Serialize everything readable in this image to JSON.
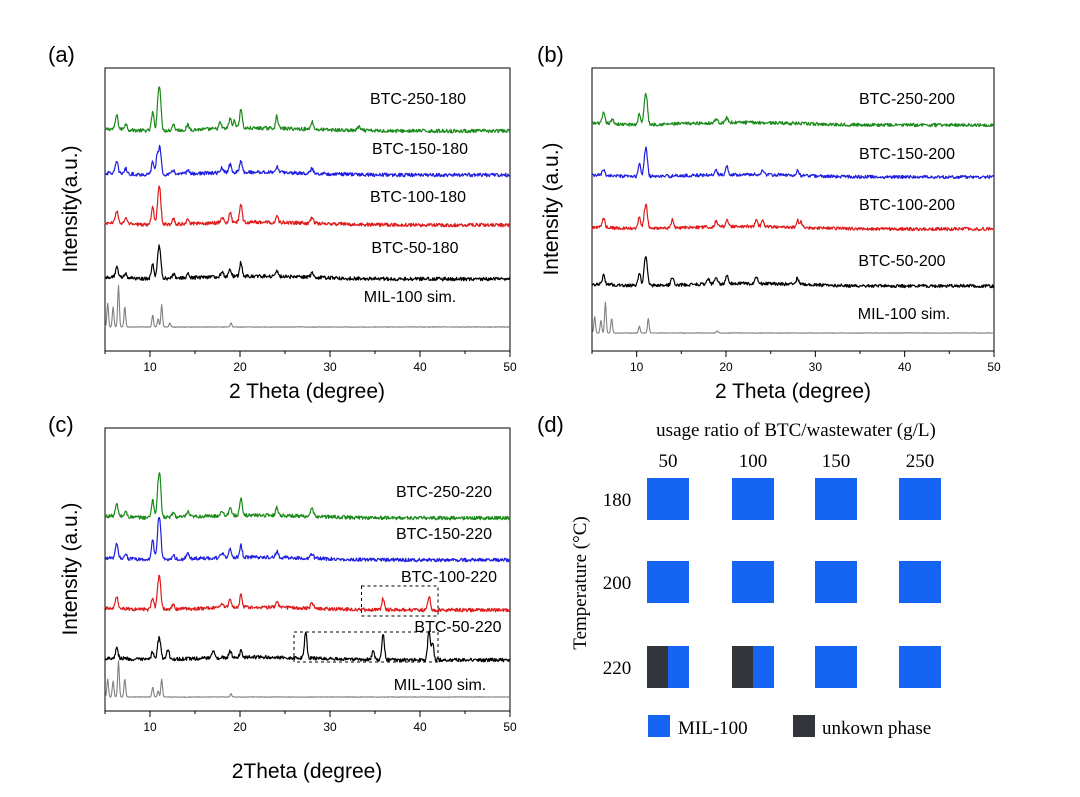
{
  "chart_data": [
    {
      "panel": "(a)",
      "type": "line",
      "title": "",
      "xlabel": "2 Theta (degree)",
      "ylabel": "Intensity(a.u.)",
      "xlim": [
        5,
        50
      ],
      "xticks": [
        10,
        20,
        30,
        40,
        50
      ],
      "series": [
        {
          "name": "BTC-250-180",
          "color": "#1a8a1a",
          "offset": 4.0,
          "peaks": [
            [
              6.3,
              0.35
            ],
            [
              7.3,
              0.15
            ],
            [
              10.3,
              0.45
            ],
            [
              10.9,
              0.6
            ],
            [
              11.1,
              0.85
            ],
            [
              12.6,
              0.15
            ],
            [
              14.2,
              0.12
            ],
            [
              17.8,
              0.15
            ],
            [
              18.9,
              0.25
            ],
            [
              19.4,
              0.2
            ],
            [
              20.1,
              0.5
            ],
            [
              24.1,
              0.3
            ],
            [
              28.0,
              0.2
            ],
            [
              33.2,
              0.1
            ]
          ]
        },
        {
          "name": "BTC-150-180",
          "color": "#1f1fe0",
          "offset": 3.0,
          "peaks": [
            [
              6.3,
              0.28
            ],
            [
              7.3,
              0.12
            ],
            [
              10.3,
              0.32
            ],
            [
              10.8,
              0.45
            ],
            [
              11.1,
              0.65
            ],
            [
              12.6,
              0.1
            ],
            [
              14.2,
              0.1
            ],
            [
              18.0,
              0.12
            ],
            [
              18.9,
              0.2
            ],
            [
              20.1,
              0.3
            ],
            [
              24.1,
              0.15
            ],
            [
              28.0,
              0.12
            ]
          ]
        },
        {
          "name": "BTC-100-180",
          "color": "#e01a1a",
          "offset": 2.0,
          "peaks": [
            [
              6.3,
              0.32
            ],
            [
              7.3,
              0.12
            ],
            [
              10.3,
              0.45
            ],
            [
              10.9,
              0.5
            ],
            [
              11.1,
              0.7
            ],
            [
              12.6,
              0.14
            ],
            [
              14.2,
              0.14
            ],
            [
              18.0,
              0.16
            ],
            [
              18.9,
              0.25
            ],
            [
              20.1,
              0.45
            ],
            [
              24.1,
              0.18
            ],
            [
              28.0,
              0.15
            ]
          ]
        },
        {
          "name": "BTC-50-180",
          "color": "#000000",
          "offset": 1.0,
          "peaks": [
            [
              6.3,
              0.25
            ],
            [
              7.3,
              0.1
            ],
            [
              10.3,
              0.35
            ],
            [
              10.9,
              0.45
            ],
            [
              11.1,
              0.6
            ],
            [
              12.6,
              0.1
            ],
            [
              14.2,
              0.1
            ],
            [
              18.0,
              0.14
            ],
            [
              18.9,
              0.2
            ],
            [
              20.1,
              0.35
            ],
            [
              24.1,
              0.15
            ],
            [
              28.0,
              0.12
            ]
          ]
        },
        {
          "name": "MIL-100 sim.",
          "color": "#808080",
          "offset": 0.0,
          "peaks": [
            [
              5.3,
              0.6
            ],
            [
              5.9,
              0.5
            ],
            [
              6.5,
              1.05
            ],
            [
              7.2,
              0.5
            ],
            [
              10.3,
              0.3
            ],
            [
              10.9,
              0.2
            ],
            [
              11.3,
              0.55
            ],
            [
              12.2,
              0.1
            ],
            [
              19.0,
              0.1
            ]
          ]
        }
      ]
    },
    {
      "panel": "(b)",
      "type": "line",
      "title": "",
      "xlabel": "2 Theta (degree)",
      "ylabel": "Intensity (a.u.)",
      "xlim": [
        5,
        50
      ],
      "xticks": [
        10,
        20,
        30,
        40,
        50
      ],
      "series": [
        {
          "name": "BTC-250-200",
          "color": "#1a8a1a",
          "offset": 4.0,
          "peaks": [
            [
              6.3,
              0.28
            ],
            [
              7.3,
              0.12
            ],
            [
              10.3,
              0.3
            ],
            [
              10.9,
              0.45
            ],
            [
              11.1,
              0.65
            ],
            [
              18.9,
              0.12
            ],
            [
              20.1,
              0.14
            ]
          ]
        },
        {
          "name": "BTC-150-200",
          "color": "#1f1fe0",
          "offset": 3.0,
          "peaks": [
            [
              6.3,
              0.15
            ],
            [
              10.3,
              0.35
            ],
            [
              10.9,
              0.4
            ],
            [
              11.1,
              0.6
            ],
            [
              18.9,
              0.12
            ],
            [
              20.1,
              0.25
            ],
            [
              24.1,
              0.12
            ],
            [
              28.0,
              0.14
            ]
          ]
        },
        {
          "name": "BTC-100-200",
          "color": "#e01a1a",
          "offset": 2.0,
          "peaks": [
            [
              6.3,
              0.25
            ],
            [
              10.3,
              0.32
            ],
            [
              10.9,
              0.35
            ],
            [
              11.1,
              0.5
            ],
            [
              14.0,
              0.22
            ],
            [
              18.9,
              0.18
            ],
            [
              20.1,
              0.2
            ],
            [
              23.4,
              0.22
            ],
            [
              24.1,
              0.15
            ],
            [
              28.0,
              0.2
            ],
            [
              28.4,
              0.15
            ]
          ]
        },
        {
          "name": "BTC-50-200",
          "color": "#000000",
          "offset": 1.0,
          "peaks": [
            [
              6.3,
              0.25
            ],
            [
              10.3,
              0.35
            ],
            [
              10.9,
              0.45
            ],
            [
              11.1,
              0.6
            ],
            [
              14.0,
              0.22
            ],
            [
              18.0,
              0.15
            ],
            [
              18.9,
              0.2
            ],
            [
              20.1,
              0.22
            ],
            [
              23.4,
              0.2
            ],
            [
              28.0,
              0.18
            ]
          ]
        },
        {
          "name": "MIL-100 sim.",
          "color": "#808080",
          "offset": 0.0,
          "peaks": [
            [
              5.3,
              0.45
            ],
            [
              6.0,
              0.35
            ],
            [
              6.5,
              0.85
            ],
            [
              7.2,
              0.4
            ],
            [
              10.3,
              0.2
            ],
            [
              11.3,
              0.4
            ],
            [
              19.0,
              0.06
            ]
          ]
        }
      ]
    },
    {
      "panel": "(c)",
      "type": "line",
      "title": "",
      "xlabel": "2Theta (degree)",
      "ylabel": "Intensity (a.u.)",
      "xlim": [
        5,
        50
      ],
      "xticks": [
        10,
        20,
        30,
        40,
        50
      ],
      "series": [
        {
          "name": "BTC-250-220",
          "color": "#1a8a1a",
          "offset": 4.0,
          "peaks": [
            [
              6.3,
              0.3
            ],
            [
              7.3,
              0.12
            ],
            [
              10.3,
              0.45
            ],
            [
              10.9,
              0.6
            ],
            [
              11.1,
              0.85
            ],
            [
              12.6,
              0.12
            ],
            [
              14.2,
              0.12
            ],
            [
              18.0,
              0.14
            ],
            [
              18.9,
              0.22
            ],
            [
              20.1,
              0.4
            ],
            [
              24.1,
              0.2
            ],
            [
              28.0,
              0.2
            ]
          ]
        },
        {
          "name": "BTC-150-220",
          "color": "#1f1fe0",
          "offset": 3.0,
          "peaks": [
            [
              6.3,
              0.35
            ],
            [
              7.3,
              0.12
            ],
            [
              10.3,
              0.5
            ],
            [
              10.9,
              0.6
            ],
            [
              11.1,
              0.8
            ],
            [
              12.6,
              0.12
            ],
            [
              14.2,
              0.15
            ],
            [
              18.0,
              0.12
            ],
            [
              18.9,
              0.2
            ],
            [
              20.1,
              0.3
            ],
            [
              24.1,
              0.15
            ],
            [
              28.0,
              0.12
            ]
          ]
        },
        {
          "name": "BTC-100-220",
          "color": "#e01a1a",
          "offset": 2.0,
          "peaks": [
            [
              6.3,
              0.3
            ],
            [
              10.3,
              0.3
            ],
            [
              10.9,
              0.45
            ],
            [
              11.1,
              0.6
            ],
            [
              12.6,
              0.12
            ],
            [
              18.0,
              0.12
            ],
            [
              18.9,
              0.2
            ],
            [
              20.1,
              0.3
            ],
            [
              24.1,
              0.15
            ],
            [
              28.0,
              0.15
            ],
            [
              35.9,
              0.3
            ],
            [
              41.0,
              0.35
            ]
          ]
        },
        {
          "name": "BTC-50-220",
          "color": "#000000",
          "offset": 1.0,
          "peaks": [
            [
              6.3,
              0.25
            ],
            [
              10.3,
              0.2
            ],
            [
              10.9,
              0.3
            ],
            [
              11.1,
              0.4
            ],
            [
              12.0,
              0.25
            ],
            [
              17.0,
              0.2
            ],
            [
              18.9,
              0.15
            ],
            [
              20.1,
              0.15
            ],
            [
              27.3,
              0.65
            ],
            [
              34.8,
              0.2
            ],
            [
              35.9,
              0.65
            ],
            [
              41.0,
              0.75
            ],
            [
              41.4,
              0.4
            ]
          ]
        },
        {
          "name": "MIL-100 sim.",
          "color": "#808080",
          "offset": 0.0,
          "peaks": [
            [
              5.3,
              0.45
            ],
            [
              5.9,
              0.4
            ],
            [
              6.5,
              0.9
            ],
            [
              7.2,
              0.45
            ],
            [
              10.3,
              0.25
            ],
            [
              10.9,
              0.15
            ],
            [
              11.3,
              0.45
            ],
            [
              19.0,
              0.08
            ]
          ]
        }
      ],
      "annotations": [
        {
          "type": "dashed-box",
          "series": "BTC-100-220",
          "x_range": [
            33.5,
            42.0
          ]
        },
        {
          "type": "dashed-box",
          "series": "BTC-50-220",
          "x_range": [
            26.0,
            42.0
          ]
        }
      ]
    },
    {
      "panel": "(d)",
      "type": "heatmap",
      "title": "usage ratio of BTC/wastewater (g/L)",
      "xlabel": "usage ratio of BTC/wastewater (g/L)",
      "ylabel": "Temperature (°C)",
      "categories": [
        "50",
        "100",
        "150",
        "250"
      ],
      "rows": [
        "180",
        "200",
        "220"
      ],
      "cells": [
        [
          {
            "mil": 1.0
          },
          {
            "mil": 1.0
          },
          {
            "mil": 1.0
          },
          {
            "mil": 1.0
          }
        ],
        [
          {
            "mil": 1.0
          },
          {
            "mil": 1.0
          },
          {
            "mil": 1.0
          },
          {
            "mil": 1.0
          }
        ],
        [
          {
            "mil": 0.5
          },
          {
            "mil": 0.5
          },
          {
            "mil": 1.0
          },
          {
            "mil": 1.0
          }
        ]
      ],
      "legend": [
        {
          "label": "MIL-100",
          "color": "#1565f2"
        },
        {
          "label": "unkown phase",
          "color": "#32353a"
        }
      ]
    }
  ]
}
